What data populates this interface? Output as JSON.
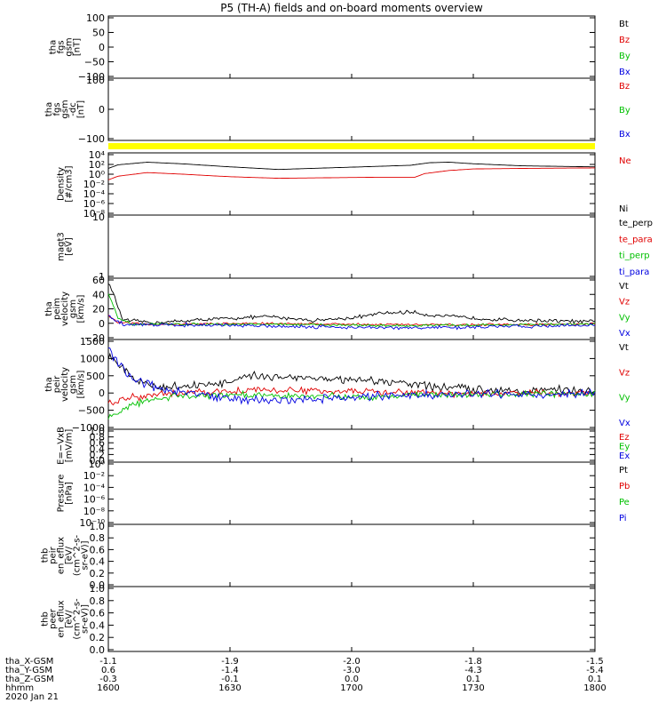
{
  "title": "P5 (TH-A) fields and on-board moments overview",
  "chart_data": {
    "type": "line",
    "title": "P5 (TH-A) fields and on-board moments overview",
    "x": {
      "label": "hhmm",
      "ticks": [
        "1600",
        "1630",
        "1700",
        "1730",
        "1800"
      ],
      "ephemeris": [
        {
          "label": "tha_X-GSM",
          "values": [
            "-1.1",
            "-1.9",
            "-2.0",
            "-1.8",
            "-1.5"
          ]
        },
        {
          "label": "tha_Y-GSM",
          "values": [
            "0.6",
            "-1.4",
            "-3.0",
            "-4.3",
            "-5.4"
          ]
        },
        {
          "label": "tha_Z-GSM",
          "values": [
            "-0.3",
            "-0.1",
            "0.0",
            "0.1",
            "0.1"
          ]
        }
      ],
      "date": "2020 Jan 21"
    },
    "panels": [
      {
        "id": "fgs",
        "ylabel": [
          "tha",
          "fgs",
          "gsm",
          "[nT]"
        ],
        "yticks": [
          "100",
          "50",
          "0",
          "−50",
          "−100"
        ],
        "legend": [
          {
            "name": "Bt",
            "color": "#000000"
          },
          {
            "name": "Bz",
            "color": "#e00000"
          },
          {
            "name": "By",
            "color": "#00c000"
          },
          {
            "name": "Bx",
            "color": "#0000e0"
          }
        ]
      },
      {
        "id": "fgs_dc",
        "ylabel": [
          "tha",
          "fgs",
          "gsm",
          "-dc",
          "[nT]"
        ],
        "yticks": [
          "100",
          "0",
          "−100"
        ],
        "legend": [
          {
            "name": "Bz",
            "color": "#e00000"
          },
          {
            "name": "By",
            "color": "#00c000"
          },
          {
            "name": "Bx",
            "color": "#0000e0"
          }
        ]
      },
      {
        "id": "density",
        "ylabel": [
          "Density",
          "[#/cm3]"
        ],
        "yticks": [
          "10⁴",
          "10²",
          "10⁰",
          "10⁻²",
          "10⁻⁴",
          "10⁻⁶",
          "10⁻⁸"
        ],
        "legend": [
          {
            "name": "Ne",
            "color": "#e00000"
          },
          {
            "name": "Ni",
            "color": "#000000"
          }
        ],
        "series": [
          {
            "name": "Ni",
            "color": "#000000",
            "scale": "log",
            "ylim": [
              -8,
              4
            ],
            "values": [
              [
                0,
                1.0
              ],
              [
                0.02,
                1.7
              ],
              [
                0.08,
                2.2
              ],
              [
                0.15,
                1.9
              ],
              [
                0.25,
                1.3
              ],
              [
                0.35,
                0.8
              ],
              [
                0.45,
                1.1
              ],
              [
                0.52,
                1.3
              ],
              [
                0.62,
                1.6
              ],
              [
                0.66,
                2.1
              ],
              [
                0.7,
                2.2
              ],
              [
                0.75,
                1.9
              ],
              [
                0.85,
                1.5
              ],
              [
                1.0,
                1.3
              ]
            ]
          },
          {
            "name": "Ne",
            "color": "#e00000",
            "scale": "log",
            "ylim": [
              -8,
              4
            ],
            "values": [
              [
                0,
                -1.2
              ],
              [
                0.02,
                -0.5
              ],
              [
                0.08,
                0.2
              ],
              [
                0.15,
                -0.1
              ],
              [
                0.25,
                -0.6
              ],
              [
                0.35,
                -0.9
              ],
              [
                0.45,
                -0.8
              ],
              [
                0.55,
                -0.7
              ],
              [
                0.63,
                -0.7
              ],
              [
                0.65,
                0.0
              ],
              [
                0.7,
                0.6
              ],
              [
                0.75,
                0.9
              ],
              [
                0.85,
                1.0
              ],
              [
                1.0,
                1.1
              ]
            ]
          }
        ]
      },
      {
        "id": "magt3",
        "ylabel": [
          "magt3",
          "[eV]"
        ],
        "yticks": [
          "10",
          "1"
        ],
        "legend": [
          {
            "name": "te_perp",
            "color": "#000000"
          },
          {
            "name": "te_para",
            "color": "#e00000"
          },
          {
            "name": "ti_perp",
            "color": "#00c000"
          },
          {
            "name": "ti_para",
            "color": "#0000e0"
          }
        ]
      },
      {
        "id": "peim",
        "ylabel": [
          "tha",
          "peim",
          "velocity",
          "gsm",
          "[km/s]"
        ],
        "yticks": [
          "60",
          "40",
          "20",
          "0",
          "−20"
        ],
        "legend": [
          {
            "name": "Vt",
            "color": "#000000"
          },
          {
            "name": "Vz",
            "color": "#e00000"
          },
          {
            "name": "Vy",
            "color": "#00c000"
          },
          {
            "name": "Vx",
            "color": "#0000e0"
          }
        ],
        "series": [
          {
            "name": "Vt",
            "color": "#000000",
            "ylim": [
              -20,
              60
            ],
            "noise": 3,
            "values": [
              [
                0,
                55
              ],
              [
                0.01,
                40
              ],
              [
                0.03,
                5
              ],
              [
                0.1,
                2
              ],
              [
                0.2,
                6
              ],
              [
                0.33,
                10
              ],
              [
                0.42,
                5
              ],
              [
                0.5,
                8
              ],
              [
                0.56,
                14
              ],
              [
                0.62,
                16
              ],
              [
                0.66,
                12
              ],
              [
                0.7,
                10
              ],
              [
                0.8,
                6
              ],
              [
                1.0,
                3
              ]
            ]
          },
          {
            "name": "Vz",
            "color": "#e00000",
            "ylim": [
              -20,
              60
            ],
            "noise": 2,
            "values": [
              [
                0,
                12
              ],
              [
                0.02,
                2
              ],
              [
                0.1,
                0
              ],
              [
                0.3,
                1
              ],
              [
                0.5,
                0
              ],
              [
                0.7,
                -1
              ],
              [
                1.0,
                0
              ]
            ]
          },
          {
            "name": "Vy",
            "color": "#00c000",
            "ylim": [
              -20,
              60
            ],
            "noise": 2,
            "values": [
              [
                0,
                40
              ],
              [
                0.02,
                8
              ],
              [
                0.05,
                0
              ],
              [
                0.3,
                0
              ],
              [
                0.6,
                -2
              ],
              [
                1.0,
                0
              ]
            ]
          },
          {
            "name": "Vx",
            "color": "#0000e0",
            "ylim": [
              -20,
              60
            ],
            "noise": 3,
            "values": [
              [
                0,
                10
              ],
              [
                0.03,
                0
              ],
              [
                0.3,
                -2
              ],
              [
                0.6,
                -5
              ],
              [
                0.75,
                -4
              ],
              [
                1.0,
                -1
              ]
            ]
          }
        ]
      },
      {
        "id": "peir",
        "ylabel": [
          "tha",
          "peir",
          "velocity",
          "gsm",
          "[km/s]"
        ],
        "yticks": [
          "1500",
          "1000",
          "500",
          "0",
          "−500",
          "−1000"
        ],
        "legend": [
          {
            "name": "Vt",
            "color": "#000000"
          },
          {
            "name": "Vz",
            "color": "#e00000"
          },
          {
            "name": "Vy",
            "color": "#00c000"
          },
          {
            "name": "Vx",
            "color": "#0000e0"
          }
        ],
        "series": [
          {
            "name": "Vt",
            "color": "#000000",
            "ylim": [
              -1000,
              1500
            ],
            "noise": 150,
            "values": [
              [
                0,
                1100
              ],
              [
                0.05,
                400
              ],
              [
                0.1,
                150
              ],
              [
                0.25,
                300
              ],
              [
                0.3,
                500
              ],
              [
                0.4,
                450
              ],
              [
                0.5,
                350
              ],
              [
                0.6,
                300
              ],
              [
                0.7,
                150
              ],
              [
                0.8,
                100
              ],
              [
                1.0,
                80
              ]
            ]
          },
          {
            "name": "Vz",
            "color": "#e00000",
            "ylim": [
              -1000,
              1500
            ],
            "noise": 120,
            "values": [
              [
                0,
                -300
              ],
              [
                0.05,
                -100
              ],
              [
                0.15,
                0
              ],
              [
                0.3,
                100
              ],
              [
                0.5,
                50
              ],
              [
                0.7,
                0
              ],
              [
                1.0,
                0
              ]
            ]
          },
          {
            "name": "Vy",
            "color": "#00c000",
            "ylim": [
              -1000,
              1500
            ],
            "noise": 120,
            "values": [
              [
                0,
                -700
              ],
              [
                0.05,
                -300
              ],
              [
                0.15,
                -50
              ],
              [
                0.3,
                -50
              ],
              [
                0.5,
                -100
              ],
              [
                0.7,
                -30
              ],
              [
                1.0,
                0
              ]
            ]
          },
          {
            "name": "Vx",
            "color": "#0000e0",
            "ylim": [
              -1000,
              1500
            ],
            "noise": 150,
            "values": [
              [
                0,
                1200
              ],
              [
                0.04,
                500
              ],
              [
                0.1,
                150
              ],
              [
                0.25,
                -150
              ],
              [
                0.35,
                -200
              ],
              [
                0.5,
                -100
              ],
              [
                0.65,
                -50
              ],
              [
                0.75,
                -30
              ],
              [
                1.0,
                0
              ]
            ]
          }
        ]
      },
      {
        "id": "efield",
        "ylabel": [
          "E=−VxB",
          "[mV/m]"
        ],
        "yticks": [
          "1.0",
          "0.8",
          "0.6",
          "0.4",
          "0.2",
          "0.0"
        ],
        "legend": [
          {
            "name": "Ez",
            "color": "#e00000"
          },
          {
            "name": "Ey",
            "color": "#00c000"
          },
          {
            "name": "Ex",
            "color": "#0000e0"
          }
        ]
      },
      {
        "id": "pressure",
        "ylabel": [
          "Pressure",
          "[nPa]"
        ],
        "yticks": [
          "10⁰",
          "10⁻²",
          "10⁻⁴",
          "10⁻⁶",
          "10⁻⁸",
          "10⁻¹⁰"
        ],
        "legend": [
          {
            "name": "Pt",
            "color": "#000000"
          },
          {
            "name": "Pb",
            "color": "#e00000"
          },
          {
            "name": "Pe",
            "color": "#00c000"
          },
          {
            "name": "Pi",
            "color": "#0000e0"
          }
        ]
      },
      {
        "id": "thb_peir",
        "ylabel": [
          "thb",
          "peir",
          "en_eflux",
          "[eV/",
          "(cm^2-s-",
          "sr-eV)]"
        ],
        "yticks": [
          "1.0",
          "0.8",
          "0.6",
          "0.4",
          "0.2",
          "0.0"
        ],
        "legend": []
      },
      {
        "id": "thb_peer",
        "ylabel": [
          "thb",
          "peer",
          "en_eflux",
          "[eV/",
          "(cm^2-s-",
          "sr-eV)]"
        ],
        "yticks": [
          "1.0",
          "0.8",
          "0.6",
          "0.4",
          "0.2",
          "0.0"
        ],
        "legend": []
      }
    ]
  }
}
